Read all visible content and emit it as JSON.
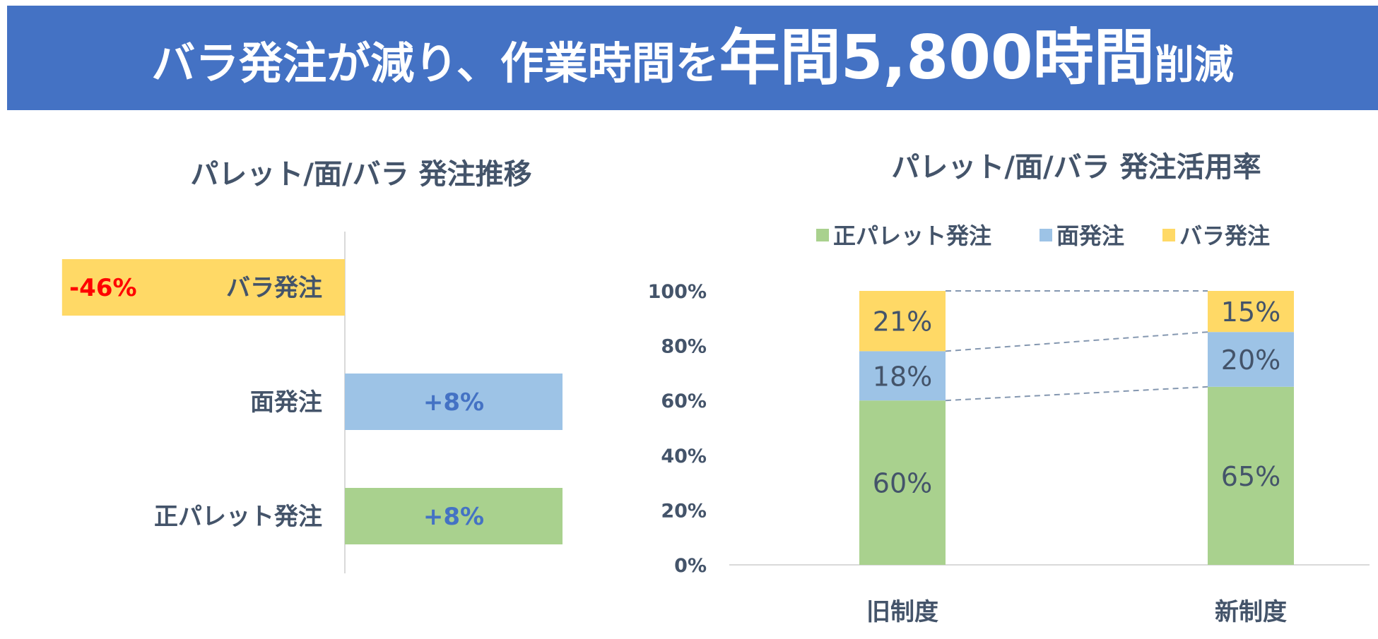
{
  "header": {
    "title_part1": "バラ発注が減り、作業時間を",
    "title_part2": "年間5,800時間",
    "title_part3": "削減"
  },
  "colors": {
    "header_bg": "#4472c4",
    "green": "#a9d18e",
    "blue": "#9dc3e6",
    "yellow": "#ffd966",
    "negative_label": "#ff0000",
    "positive_label": "#4472c4",
    "text": "#44546a"
  },
  "chart_data": [
    {
      "type": "bar",
      "orientation": "horizontal",
      "title": "パレット/面/バラ 発注推移",
      "categories": [
        "バラ発注",
        "面発注",
        "正パレット発注"
      ],
      "values": [
        -46,
        8,
        8
      ],
      "value_labels": [
        "-46%",
        "+8%",
        "+8%"
      ],
      "unit": "%",
      "bar_colors": [
        "#ffd966",
        "#9dc3e6",
        "#a9d18e"
      ]
    },
    {
      "type": "bar",
      "stacked": true,
      "title": "パレット/面/バラ 発注活用率",
      "categories": [
        "旧制度",
        "新制度"
      ],
      "series": [
        {
          "name": "正パレット発注",
          "values": [
            60,
            65
          ],
          "labels": [
            "60%",
            "65%"
          ],
          "color": "#a9d18e"
        },
        {
          "name": "面発注",
          "values": [
            18,
            20
          ],
          "labels": [
            "18%",
            "20%"
          ],
          "color": "#9dc3e6"
        },
        {
          "name": "バラ発注",
          "values": [
            21,
            15
          ],
          "labels": [
            "21%",
            "15%"
          ],
          "color": "#ffd966"
        }
      ],
      "ylim": [
        0,
        100
      ],
      "yticks": [
        "0%",
        "20%",
        "40%",
        "60%",
        "80%",
        "100%"
      ],
      "legend_position": "top",
      "series_lines": "dashed"
    }
  ]
}
